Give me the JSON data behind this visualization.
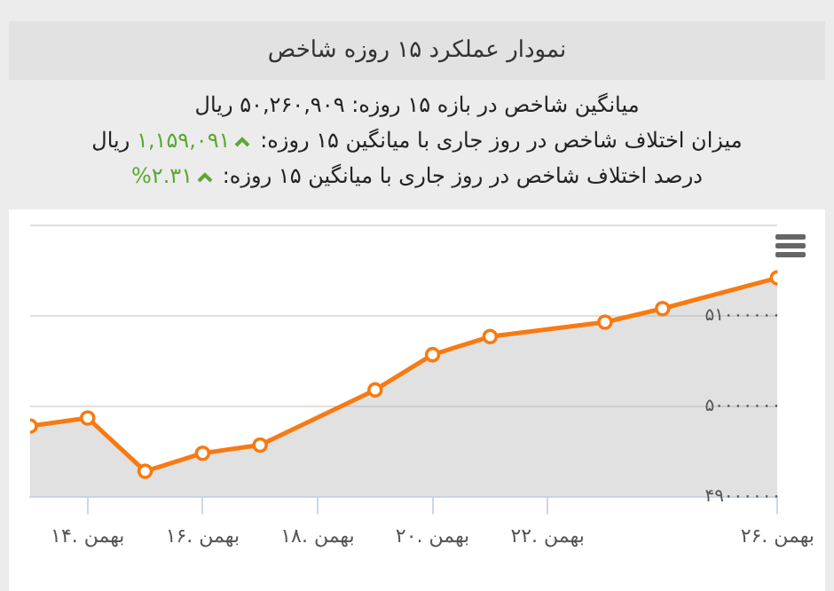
{
  "chart_data": {
    "type": "area",
    "title": "نمودار عملکرد ۱۵ روزه شاخص",
    "annotations": [
      "میانگین شاخص در بازه ۱۵ روزه: ۵۰,۲۶۰,۹۰۹ ریال",
      "میزان اختلاف شاخص در روز جاری با میانگین ۱۵ روزه: ۱,۱۵۹,۰۹۱ ریال",
      "درصد اختلاف شاخص در روز جاری با میانگین ۱۵ روزه: ۲.۳۱%"
    ],
    "x": [
      13,
      14,
      15,
      16,
      17,
      19,
      20,
      21,
      23,
      24,
      26
    ],
    "series": [
      {
        "color": "#f77a12",
        "values": [
          49780000,
          49870000,
          49280000,
          49480000,
          49570000,
          50180000,
          50570000,
          50770000,
          50930000,
          51080000,
          51420000
        ]
      }
    ],
    "xlim": [
      13,
      26
    ],
    "xticks": [
      {
        "value": 14,
        "label": "۱۴. بهمن"
      },
      {
        "value": 16,
        "label": "۱۶. بهمن"
      },
      {
        "value": 18,
        "label": "۱۸. بهمن"
      },
      {
        "value": 20,
        "label": "۲۰. بهمن"
      },
      {
        "value": 22,
        "label": "۲۲. بهمن"
      },
      {
        "value": 26,
        "label": "۲۶. بهمن"
      }
    ],
    "ylim": [
      49000000,
      52000000
    ],
    "yticks": [
      {
        "value": 49000000,
        "label": "۴۹۰۰۰۰۰۰"
      },
      {
        "value": 50000000,
        "label": "۵۰۰۰۰۰۰۰"
      },
      {
        "value": 51000000,
        "label": "۵۱۰۰۰۰۰۰"
      },
      {
        "value": 52000000,
        "label": null
      }
    ],
    "grid": "y",
    "marker": "circle",
    "line_style": "solid",
    "legend": false
  }
}
